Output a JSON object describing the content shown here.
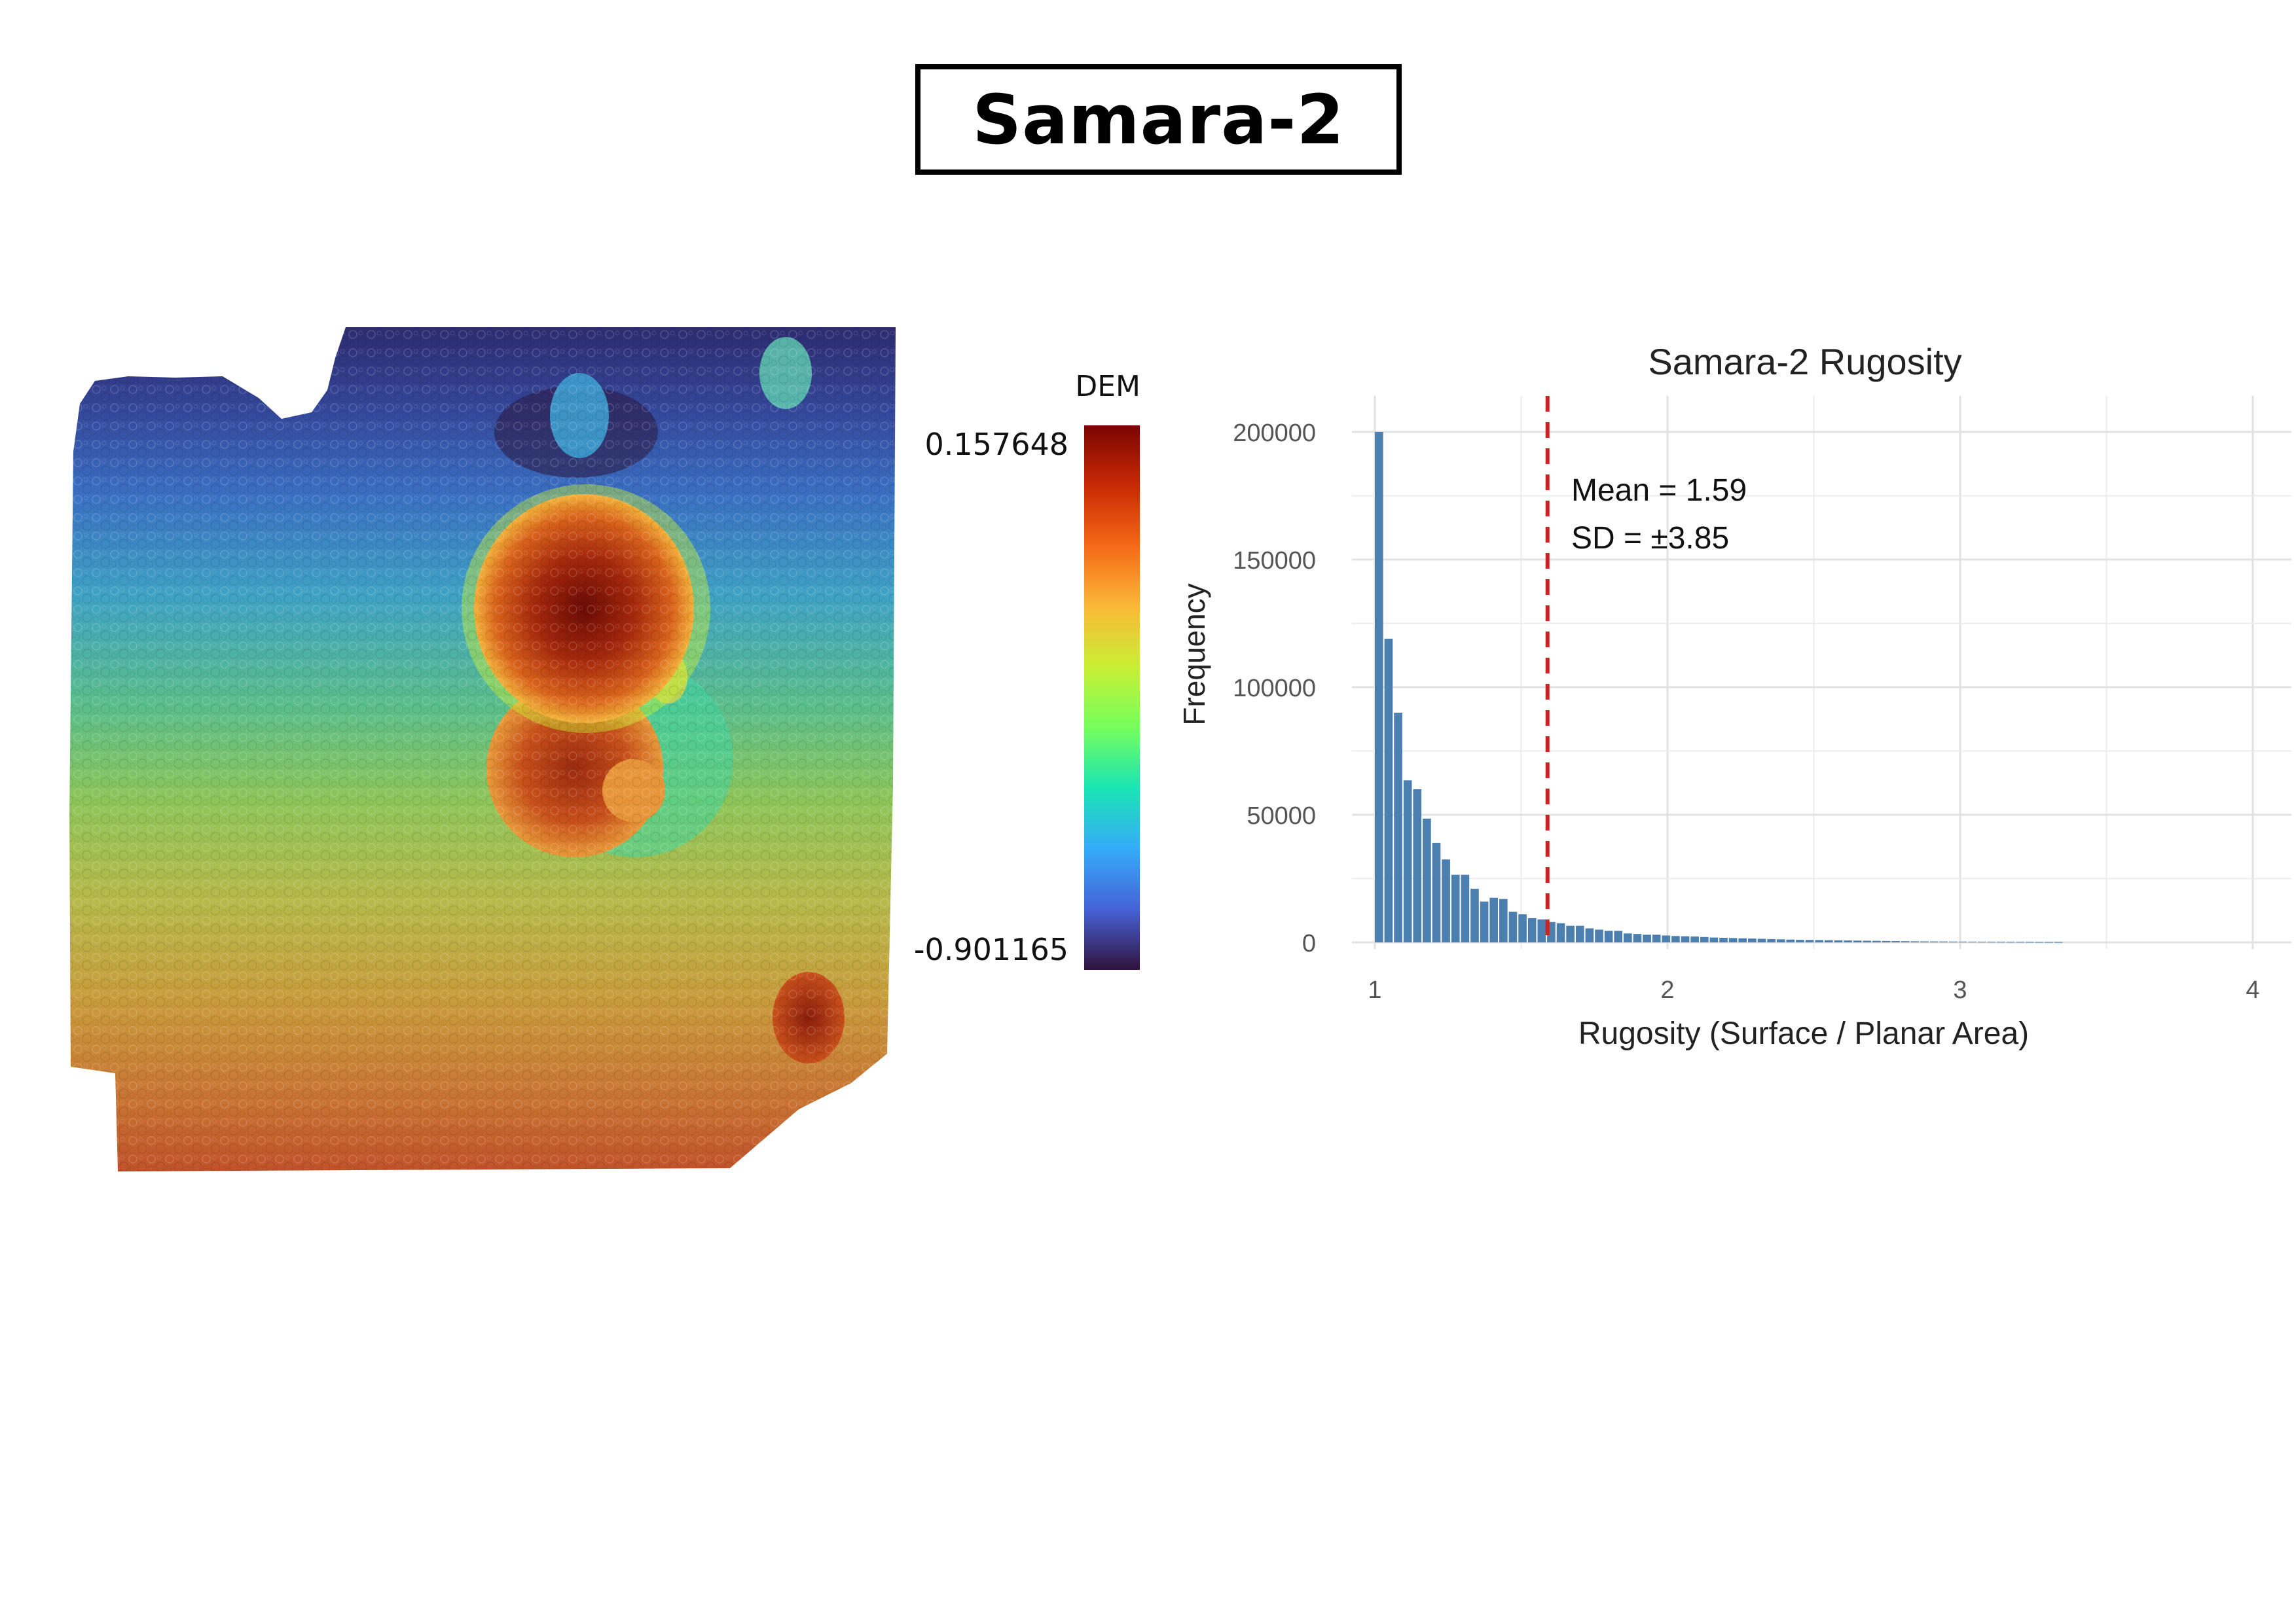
{
  "page": {
    "title": "Samara-2"
  },
  "dem_map": {
    "legend_title": "DEM",
    "legend_max": "0.157648",
    "legend_min": "-0.901165",
    "colormap": [
      "#30123b",
      "#4662d8",
      "#35abf8",
      "#1be5b5",
      "#74fe5d",
      "#c9ef34",
      "#fbb938",
      "#f56918",
      "#c92903",
      "#7a0403"
    ]
  },
  "chart_data": {
    "type": "bar",
    "title": "Samara-2 Rugosity",
    "xlabel": "Rugosity (Surface / Planar Area)",
    "ylabel": "Frequency",
    "xlim": [
      0.96,
      4.15
    ],
    "ylim": [
      0,
      200000
    ],
    "x_ticks": [
      1,
      2,
      3,
      4
    ],
    "y_ticks": [
      0,
      50000,
      100000,
      150000,
      200000
    ],
    "bin_width": 0.0327,
    "bin_start": 1.0,
    "values": [
      200000,
      119000,
      90000,
      63500,
      60000,
      48500,
      39000,
      32500,
      26500,
      26500,
      21000,
      16000,
      17500,
      17000,
      12000,
      11000,
      9500,
      9000,
      8000,
      7500,
      6500,
      6500,
      5500,
      5000,
      4500,
      4500,
      3500,
      3300,
      3000,
      3000,
      2700,
      2500,
      2400,
      2300,
      2100,
      1900,
      1800,
      1700,
      1600,
      1500,
      1400,
      1300,
      1200,
      1100,
      1000,
      950,
      900,
      850,
      800,
      750,
      700,
      650,
      600,
      550,
      500,
      450,
      420,
      390,
      360,
      330,
      300,
      280,
      260,
      240,
      220,
      200,
      180,
      160,
      140,
      120,
      100,
      80
    ],
    "bar_color": "#4a7fb0",
    "mean_line": {
      "x": 1.59,
      "color": "#d21f1f"
    },
    "annotations": [
      "Mean = 1.59",
      "SD = ±3.85"
    ],
    "grid": true
  }
}
